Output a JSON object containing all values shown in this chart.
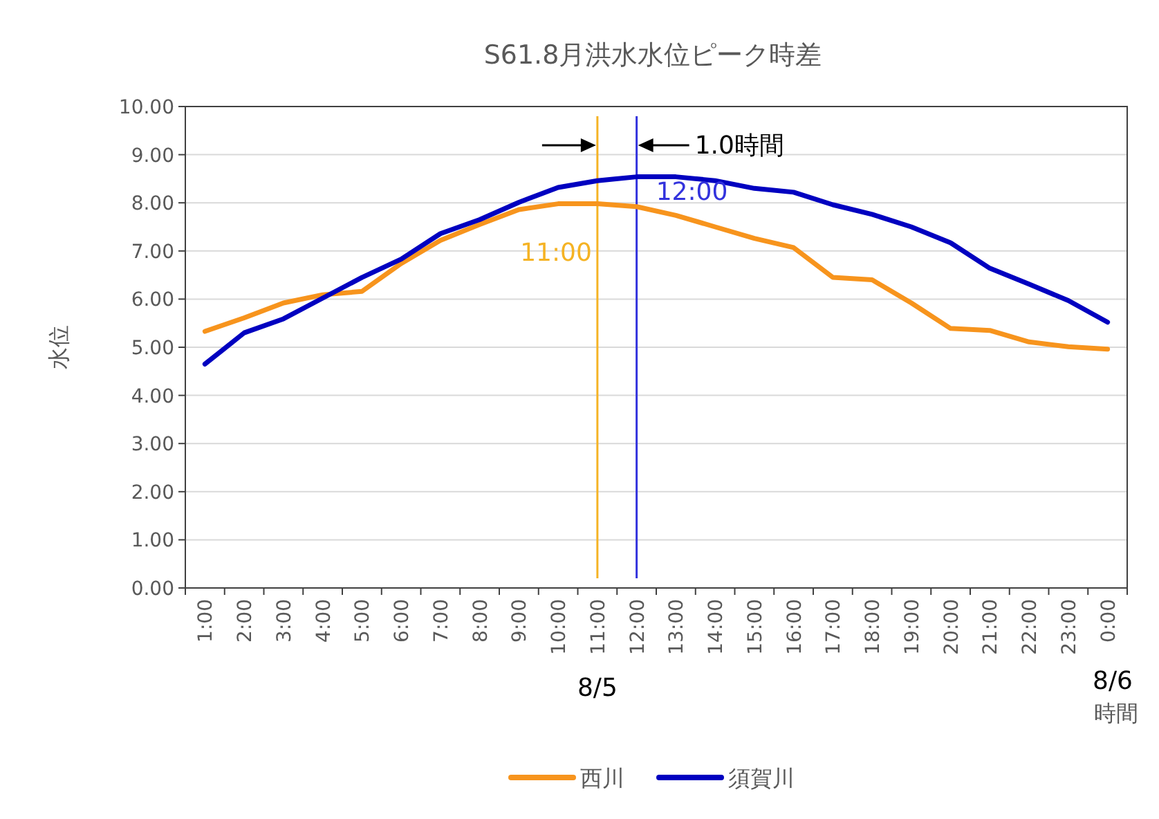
{
  "chart_data": {
    "type": "line",
    "title": "S61.8月洪水水位ピーク時差",
    "xlabel": "時間",
    "ylabel": "水位",
    "categories": [
      "1:00",
      "2:00",
      "3:00",
      "4:00",
      "5:00",
      "6:00",
      "7:00",
      "8:00",
      "9:00",
      "10:00",
      "11:00",
      "12:00",
      "13:00",
      "14:00",
      "15:00",
      "16:00",
      "17:00",
      "18:00",
      "19:00",
      "20:00",
      "21:00",
      "22:00",
      "23:00",
      "0:00"
    ],
    "series": [
      {
        "name": "西川",
        "color": "#f7941d",
        "values": [
          5.33,
          5.61,
          5.92,
          6.09,
          6.16,
          6.74,
          7.22,
          7.55,
          7.86,
          7.98,
          7.98,
          7.92,
          7.74,
          7.5,
          7.26,
          7.07,
          6.45,
          6.4,
          5.92,
          5.39,
          5.35,
          5.11,
          5.01,
          4.96
        ]
      },
      {
        "name": "須賀川",
        "color": "#0000c0",
        "values": [
          4.65,
          5.3,
          5.59,
          6.02,
          6.45,
          6.83,
          7.36,
          7.65,
          8.01,
          8.32,
          8.46,
          8.54,
          8.54,
          8.46,
          8.3,
          8.22,
          7.96,
          7.76,
          7.5,
          7.17,
          6.64,
          6.31,
          5.97,
          5.52
        ]
      }
    ],
    "ylim": [
      0,
      10
    ],
    "yticks": [
      {
        "value": 0,
        "label": "0.00"
      },
      {
        "value": 1,
        "label": "1.00"
      },
      {
        "value": 2,
        "label": "2.00"
      },
      {
        "value": 3,
        "label": "3.00"
      },
      {
        "value": 4,
        "label": "4.00"
      },
      {
        "value": 5,
        "label": "5.00"
      },
      {
        "value": 6,
        "label": "6.00"
      },
      {
        "value": 7,
        "label": "7.00"
      },
      {
        "value": 8,
        "label": "8.00"
      },
      {
        "value": 9,
        "label": "9.00"
      },
      {
        "value": 10,
        "label": "10.00"
      }
    ],
    "ref_lines": [
      {
        "axis": "x",
        "value": "11:00",
        "color": "#f5b324"
      },
      {
        "axis": "x",
        "value": "12:00",
        "color": "#3333dd"
      }
    ],
    "annotations": [
      "1.0時間",
      "8/5",
      "8/6",
      "11:00",
      "12:00"
    ],
    "grid": "y",
    "legend": "bottom",
    "marker": "none",
    "line_style": "solid"
  }
}
